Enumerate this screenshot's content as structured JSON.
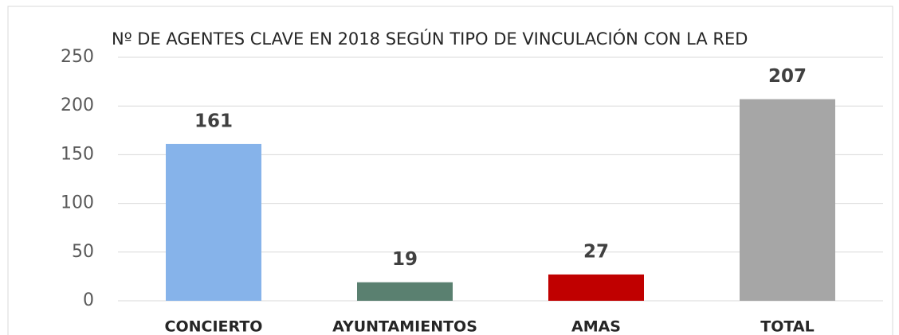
{
  "chart_data": {
    "type": "bar",
    "title": "Nº DE AGENTES CLAVE EN 2018 SEGÚN TIPO DE VINCULACIÓN CON LA RED",
    "categories": [
      "CONCIERTO",
      "AYUNTAMIENTOS",
      "AMAS",
      "TOTAL"
    ],
    "values": [
      161,
      19,
      27,
      207
    ],
    "colors": [
      "#86b3ea",
      "#5a8070",
      "#c00000",
      "#a6a6a6"
    ],
    "ylim": [
      0,
      250
    ],
    "yticks": [
      0,
      50,
      100,
      150,
      200,
      250
    ],
    "grid": true
  }
}
